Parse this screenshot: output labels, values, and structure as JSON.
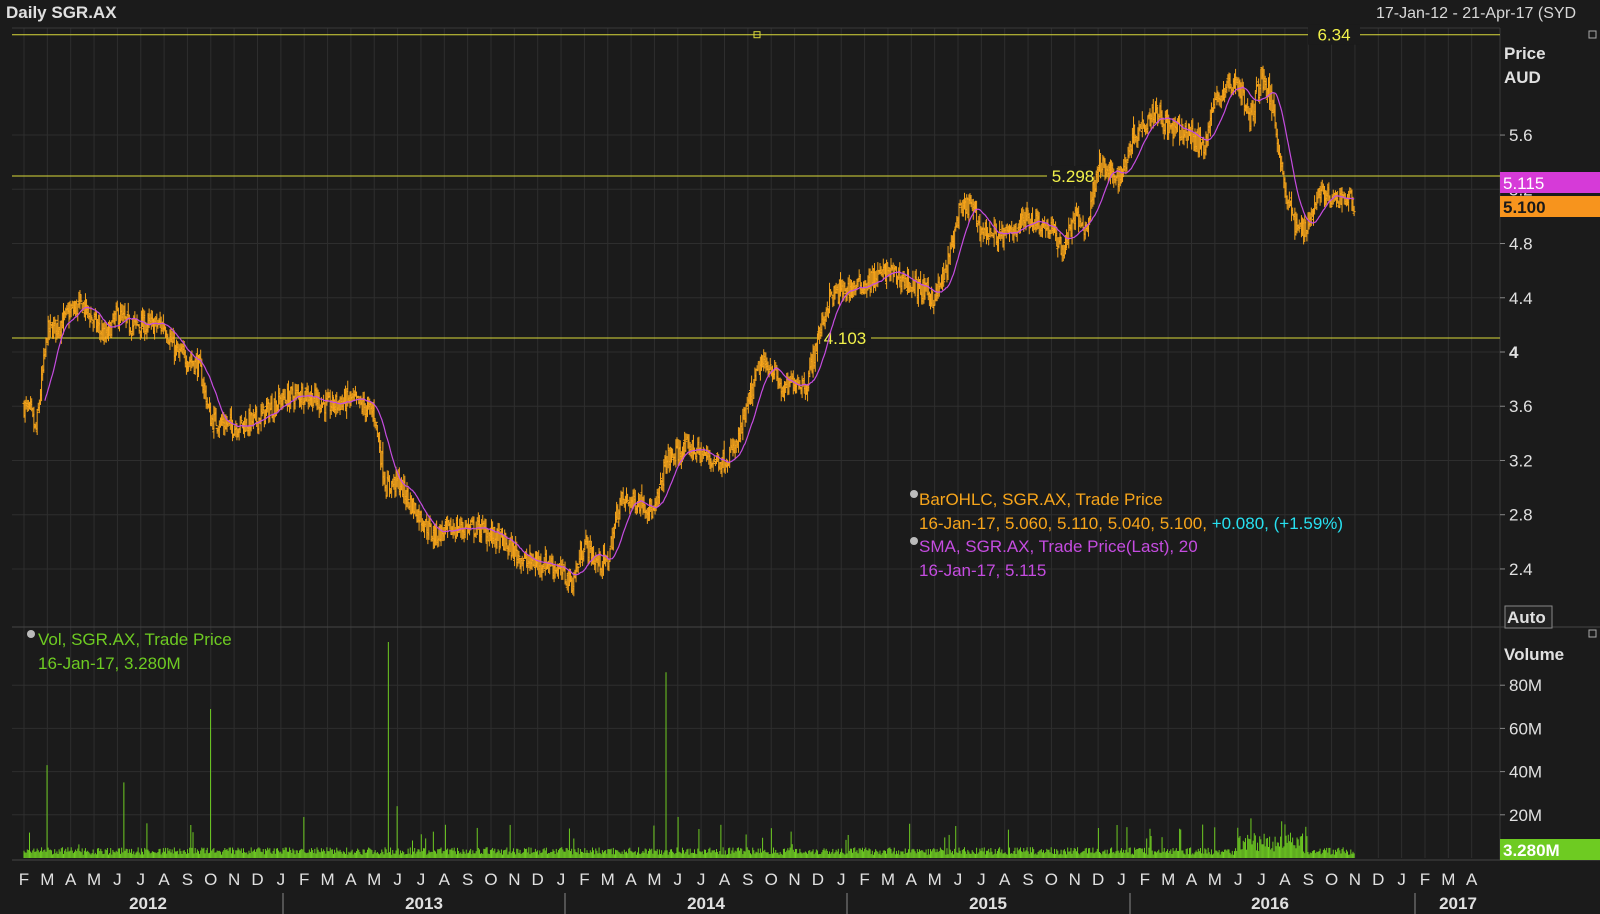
{
  "header": {
    "title": "Daily SGR.AX",
    "range": "17-Jan-12 - 21-Apr-17 (SYD"
  },
  "price_panel": {
    "axis_title_1": "Price",
    "axis_title_2": "AUD",
    "auto_button": "Auto",
    "sma_badge": "5.115",
    "price_badge": "5.100",
    "legend": {
      "bar_title": "BarOHLC, SGR.AX, Trade Price",
      "bar_values": "16-Jan-17, 5.060, 5.110, 5.040, 5.100, ",
      "bar_change": "+0.080, (+1.59%)",
      "sma_title": "SMA, SGR.AX, Trade Price(Last),  20",
      "sma_values": "16-Jan-17, 5.115"
    }
  },
  "volume_panel": {
    "axis_title": "Volume",
    "badge": "3.280M",
    "legend": {
      "title": "Vol, SGR.AX, Trade Price",
      "values": "16-Jan-17, 3.280M"
    }
  },
  "colors": {
    "background": "#1b1b1b",
    "grid": "#2e2e2e",
    "bars": "#f7a51b",
    "sma": "#c54ce0",
    "volume": "#6ecb22",
    "hlines": "#d8d83a",
    "change": "#27e0f0"
  },
  "chart_data": {
    "type": "line",
    "series": [
      {
        "name": "BarOHLC, SGR.AX, Trade Price"
      },
      {
        "name": "SMA, SGR.AX, Trade Price(Last),  20"
      },
      {
        "name": "Vol, SGR.AX, Trade Price"
      }
    ],
    "price_ylim": [
      2.0,
      6.4
    ],
    "price_ticks": [
      "2.4",
      "2.8",
      "3.2",
      "3.6",
      "4",
      "4.4",
      "4.8",
      "5.2",
      "5.6"
    ],
    "volume_ylim": [
      0,
      100
    ],
    "volume_ticks": [
      "20M",
      "40M",
      "60M",
      "80M"
    ],
    "horizontal_lines": [
      {
        "label": "6.34",
        "value": 6.34
      },
      {
        "label": "5.298",
        "value": 5.298
      },
      {
        "label": "4.103",
        "value": 4.103
      }
    ],
    "month_labels": [
      "F",
      "M",
      "A",
      "M",
      "J",
      "J",
      "A",
      "S",
      "O",
      "N",
      "D",
      "J",
      "F",
      "M",
      "A",
      "M",
      "J",
      "J",
      "A",
      "S",
      "O",
      "N",
      "D",
      "J",
      "F",
      "M",
      "A",
      "M",
      "J",
      "J",
      "A",
      "S",
      "O",
      "N",
      "D",
      "J",
      "F",
      "M",
      "A",
      "M",
      "J",
      "J",
      "A",
      "S",
      "O",
      "N",
      "D",
      "J",
      "F",
      "M",
      "A",
      "M",
      "J",
      "J",
      "A",
      "S",
      "O",
      "N",
      "D",
      "J",
      "F",
      "M",
      "A"
    ],
    "year_labels": [
      "2012",
      "2013",
      "2014",
      "2015",
      "2016",
      "2017"
    ],
    "price_path": [
      {
        "t": 0.0,
        "v": 3.6
      },
      {
        "t": 0.3,
        "v": 3.55
      },
      {
        "t": 0.5,
        "v": 3.4
      },
      {
        "t": 1.0,
        "v": 4.15
      },
      {
        "t": 1.5,
        "v": 4.2
      },
      {
        "t": 2.0,
        "v": 4.3
      },
      {
        "t": 2.5,
        "v": 4.35
      },
      {
        "t": 3.5,
        "v": 4.1
      },
      {
        "t": 4.0,
        "v": 4.28
      },
      {
        "t": 4.5,
        "v": 4.2
      },
      {
        "t": 6.0,
        "v": 4.2
      },
      {
        "t": 6.5,
        "v": 4.0
      },
      {
        "t": 7.0,
        "v": 3.95
      },
      {
        "t": 7.5,
        "v": 3.9
      },
      {
        "t": 8.0,
        "v": 3.5
      },
      {
        "t": 9.0,
        "v": 3.45
      },
      {
        "t": 10.0,
        "v": 3.5
      },
      {
        "t": 11.0,
        "v": 3.65
      },
      {
        "t": 12.0,
        "v": 3.7
      },
      {
        "t": 13.0,
        "v": 3.6
      },
      {
        "t": 14.0,
        "v": 3.65
      },
      {
        "t": 15.0,
        "v": 3.55
      },
      {
        "t": 15.5,
        "v": 3.0
      },
      {
        "t": 16.0,
        "v": 3.05
      },
      {
        "t": 16.5,
        "v": 2.9
      },
      {
        "t": 17.5,
        "v": 2.65
      },
      {
        "t": 18.5,
        "v": 2.7
      },
      {
        "t": 19.5,
        "v": 2.7
      },
      {
        "t": 20.5,
        "v": 2.6
      },
      {
        "t": 21.5,
        "v": 2.45
      },
      {
        "t": 22.5,
        "v": 2.45
      },
      {
        "t": 23.5,
        "v": 2.3
      },
      {
        "t": 24.0,
        "v": 2.6
      },
      {
        "t": 24.5,
        "v": 2.45
      },
      {
        "t": 25.0,
        "v": 2.45
      },
      {
        "t": 25.5,
        "v": 2.9
      },
      {
        "t": 26.5,
        "v": 2.9
      },
      {
        "t": 27.0,
        "v": 2.8
      },
      {
        "t": 27.5,
        "v": 3.2
      },
      {
        "t": 28.5,
        "v": 3.3
      },
      {
        "t": 29.5,
        "v": 3.2
      },
      {
        "t": 30.0,
        "v": 3.2
      },
      {
        "t": 30.5,
        "v": 3.3
      },
      {
        "t": 31.0,
        "v": 3.6
      },
      {
        "t": 31.5,
        "v": 3.9
      },
      {
        "t": 32.0,
        "v": 3.9
      },
      {
        "t": 32.5,
        "v": 3.7
      },
      {
        "t": 33.0,
        "v": 3.8
      },
      {
        "t": 33.5,
        "v": 3.75
      },
      {
        "t": 34.0,
        "v": 4.1
      },
      {
        "t": 34.5,
        "v": 4.4
      },
      {
        "t": 35.0,
        "v": 4.45
      },
      {
        "t": 36.0,
        "v": 4.5
      },
      {
        "t": 37.0,
        "v": 4.6
      },
      {
        "t": 38.0,
        "v": 4.5
      },
      {
        "t": 39.0,
        "v": 4.4
      },
      {
        "t": 39.5,
        "v": 4.6
      },
      {
        "t": 40.0,
        "v": 5.0
      },
      {
        "t": 40.5,
        "v": 5.1
      },
      {
        "t": 41.0,
        "v": 4.9
      },
      {
        "t": 42.0,
        "v": 4.85
      },
      {
        "t": 43.0,
        "v": 5.0
      },
      {
        "t": 44.0,
        "v": 4.9
      },
      {
        "t": 44.5,
        "v": 4.75
      },
      {
        "t": 45.0,
        "v": 5.0
      },
      {
        "t": 45.5,
        "v": 4.9
      },
      {
        "t": 46.0,
        "v": 5.4
      },
      {
        "t": 46.5,
        "v": 5.3
      },
      {
        "t": 47.0,
        "v": 5.3
      },
      {
        "t": 47.5,
        "v": 5.6
      },
      {
        "t": 48.0,
        "v": 5.7
      },
      {
        "t": 48.5,
        "v": 5.8
      },
      {
        "t": 49.0,
        "v": 5.65
      },
      {
        "t": 50.0,
        "v": 5.6
      },
      {
        "t": 50.5,
        "v": 5.5
      },
      {
        "t": 51.0,
        "v": 5.85
      },
      {
        "t": 51.5,
        "v": 5.95
      },
      {
        "t": 52.0,
        "v": 6.0
      },
      {
        "t": 52.5,
        "v": 5.7
      },
      {
        "t": 53.0,
        "v": 6.05
      },
      {
        "t": 53.5,
        "v": 5.8
      },
      {
        "t": 54.0,
        "v": 5.2
      },
      {
        "t": 54.5,
        "v": 4.9
      },
      {
        "t": 55.0,
        "v": 4.95
      },
      {
        "t": 55.5,
        "v": 5.2
      },
      {
        "t": 56.0,
        "v": 5.1
      },
      {
        "t": 56.5,
        "v": 5.15
      },
      {
        "t": 57.0,
        "v": 5.1
      }
    ],
    "volume_spikes": [
      {
        "t": 1.0,
        "v": 43
      },
      {
        "t": 4.3,
        "v": 35
      },
      {
        "t": 8.0,
        "v": 69
      },
      {
        "t": 12.0,
        "v": 19
      },
      {
        "t": 15.6,
        "v": 100
      },
      {
        "t": 16.0,
        "v": 24
      },
      {
        "t": 27.5,
        "v": 86
      },
      {
        "t": 28.0,
        "v": 19
      },
      {
        "t": 52.0,
        "v": 14
      },
      {
        "t": 54.0,
        "v": 14
      }
    ]
  }
}
